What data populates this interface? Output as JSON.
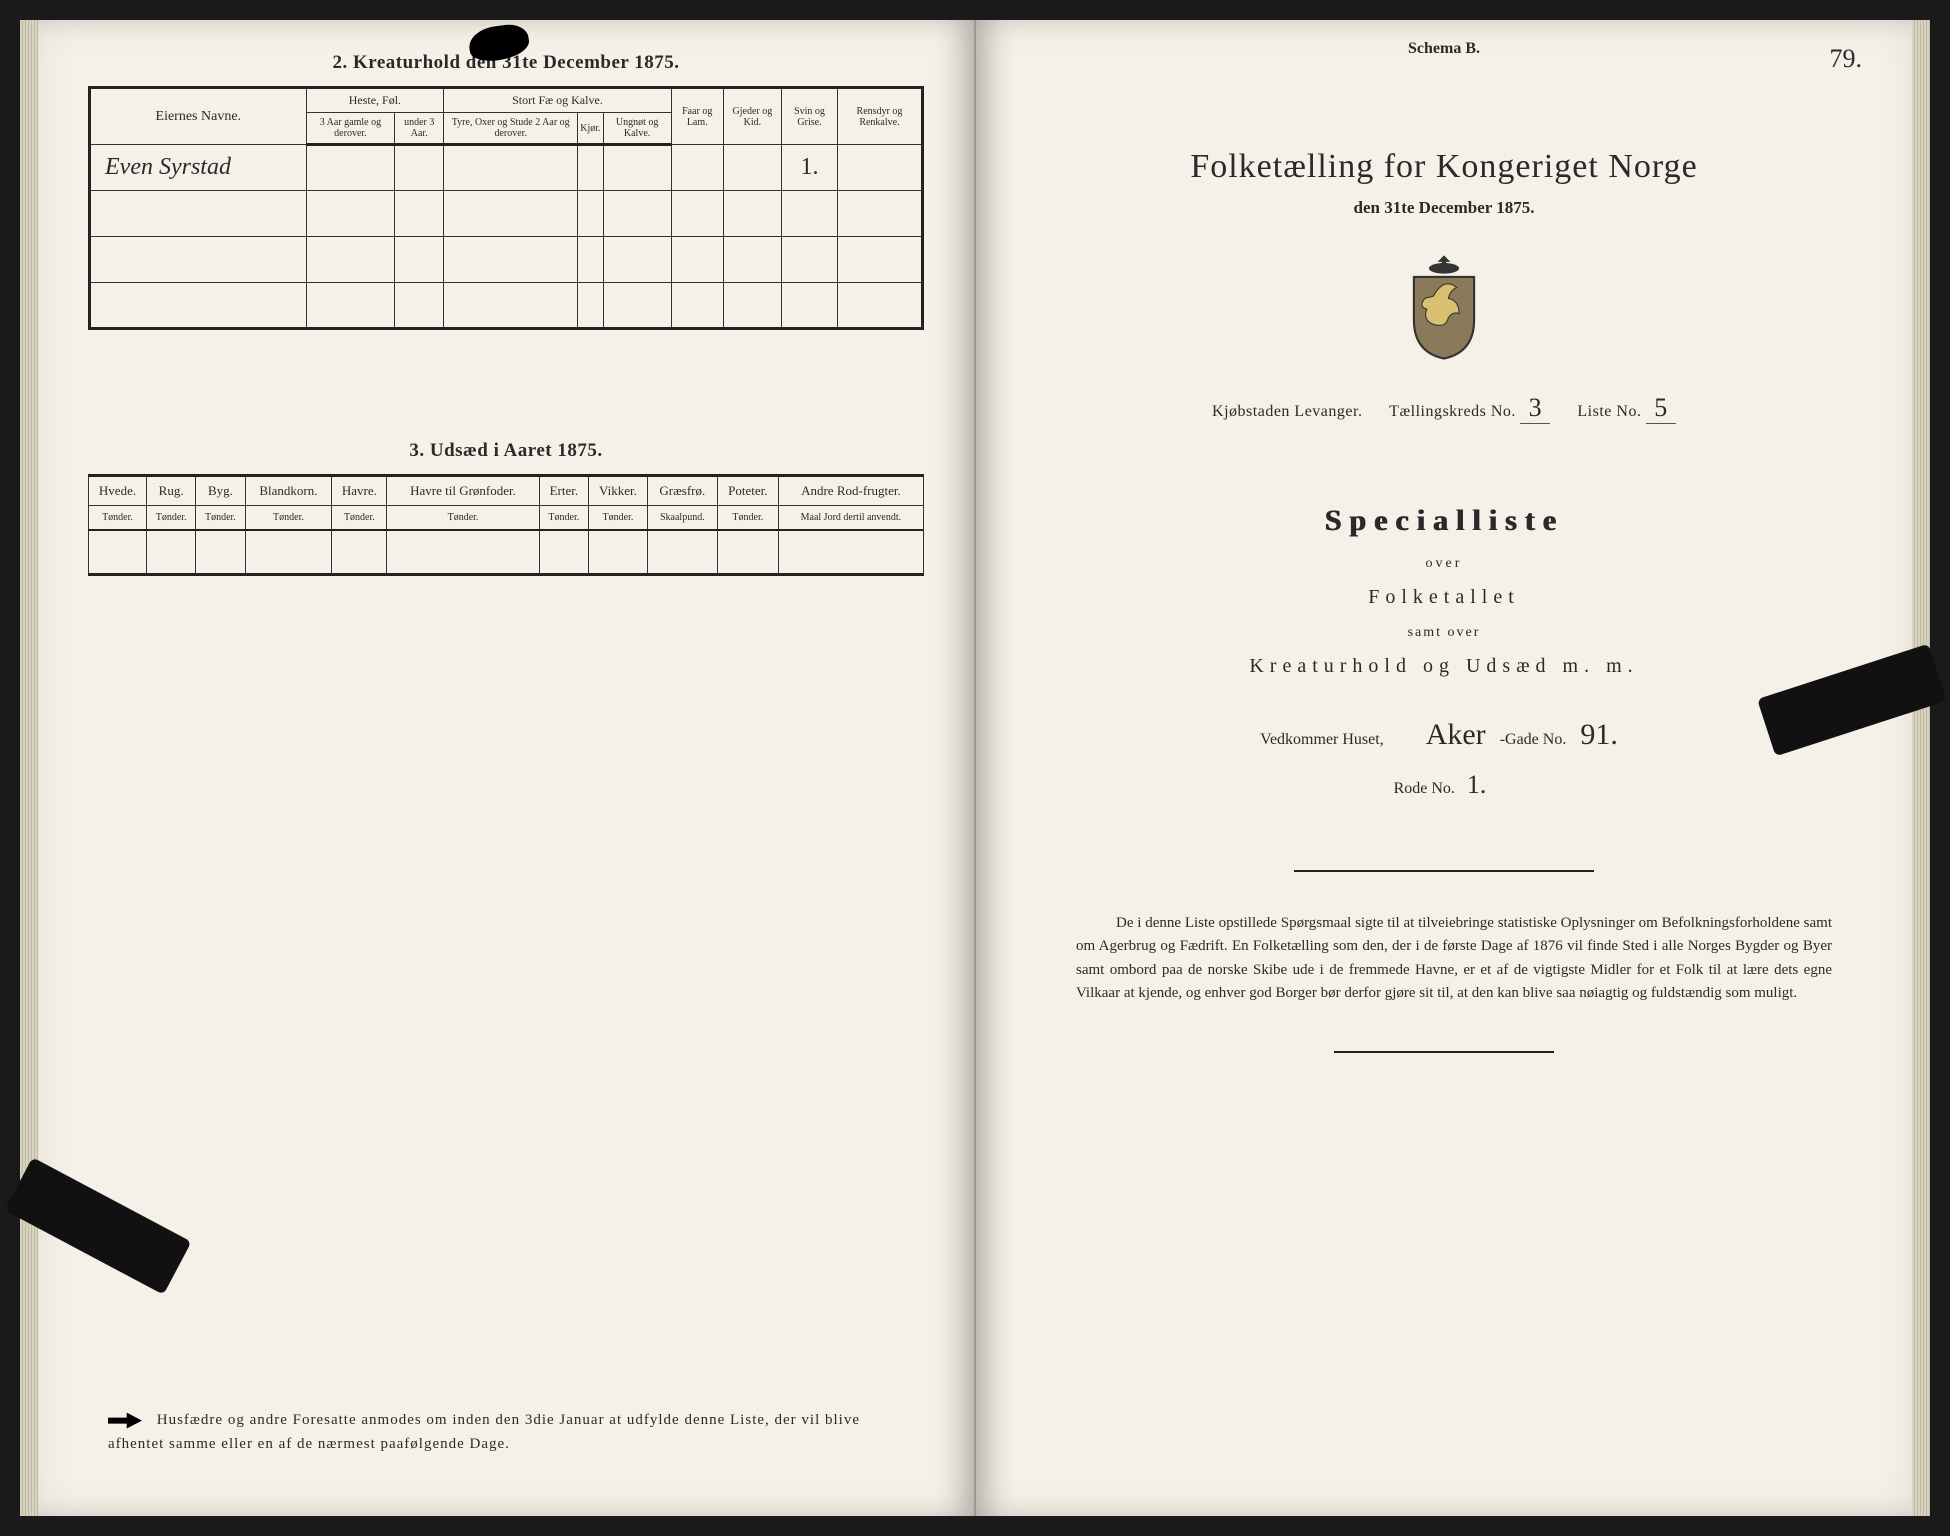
{
  "left": {
    "section2_title": "2.  Kreaturhold den 31te December 1875.",
    "kreatur": {
      "owner_header": "Eiernes Navne.",
      "group_heste": "Heste, Føl.",
      "group_fae": "Stort Fæ og Kalve.",
      "col_faar": "Faar og Lam.",
      "col_gjeder": "Gjeder og Kid.",
      "col_svin": "Svin og Grise.",
      "col_rens": "Rensdyr og Renkalve.",
      "sub_heste_1": "3 Aar gamle og derover.",
      "sub_heste_2": "under 3 Aar.",
      "sub_fae_1": "Tyre, Oxer og Stude 2 Aar og derover.",
      "sub_fae_2": "Kjør.",
      "sub_fae_3": "Ungnøt og Kalve.",
      "rows": [
        {
          "owner": "Even Syrstad",
          "svin": "1."
        }
      ]
    },
    "section3_title": "3.  Udsæd i Aaret 1875.",
    "udsaed": {
      "cols": [
        "Hvede.",
        "Rug.",
        "Byg.",
        "Blandkorn.",
        "Havre.",
        "Havre til Grønfoder.",
        "Erter.",
        "Vikker.",
        "Græsfrø.",
        "Poteter.",
        "Andre Rod-frugter."
      ],
      "units": [
        "Tønder.",
        "Tønder.",
        "Tønder.",
        "Tønder.",
        "Tønder.",
        "Tønder.",
        "Tønder.",
        "Tønder.",
        "Skaalpund.",
        "Tønder.",
        "Maal Jord dertil anvendt."
      ]
    },
    "footnote": "Husfædre og andre Foresatte anmodes om inden den 3die Januar at udfylde denne Liste, der vil blive afhentet samme eller en af de nærmest paafølgende Dage."
  },
  "right": {
    "schema": "Schema B.",
    "page_number": "79.",
    "title": "Folketælling for Kongeriget Norge",
    "date": "den 31te December 1875.",
    "meta_town_label": "Kjøbstaden Levanger.",
    "meta_kreds_label": "Tællingskreds No.",
    "meta_kreds_value": "3",
    "meta_liste_label": "Liste No.",
    "meta_liste_value": "5",
    "special": "Specialliste",
    "sub1": "over",
    "sub2": "Folketallet",
    "sub3": "samt over",
    "sub4": "Kreaturhold og Udsæd m. m.",
    "house_label": "Vedkommer Huset,",
    "house_gade_hw": "Aker",
    "house_gade_label": "-Gade No.",
    "house_gade_no": "91.",
    "rode_label": "Rode No.",
    "rode_no": "1.",
    "bottom_para": "De i denne Liste opstillede Spørgsmaal sigte til at tilveiebringe statistiske Oplysninger om Befolkningsforholdene samt om Agerbrug og Fædrift.  En Folketælling som den, der i de første Dage af 1876 vil finde Sted i alle Norges Bygder og Byer samt ombord paa de norske Skibe ude i de fremmede Havne, er et af de vigtigste Midler for et Folk til at lære dets egne Vilkaar at kjende, og enhver god Borger bør derfor gjøre sit til, at den kan blive saa nøiagtig og fuldstændig som muligt."
  },
  "colors": {
    "paper": "#f5f1e8",
    "ink": "#222222",
    "background": "#1a1a1a"
  }
}
